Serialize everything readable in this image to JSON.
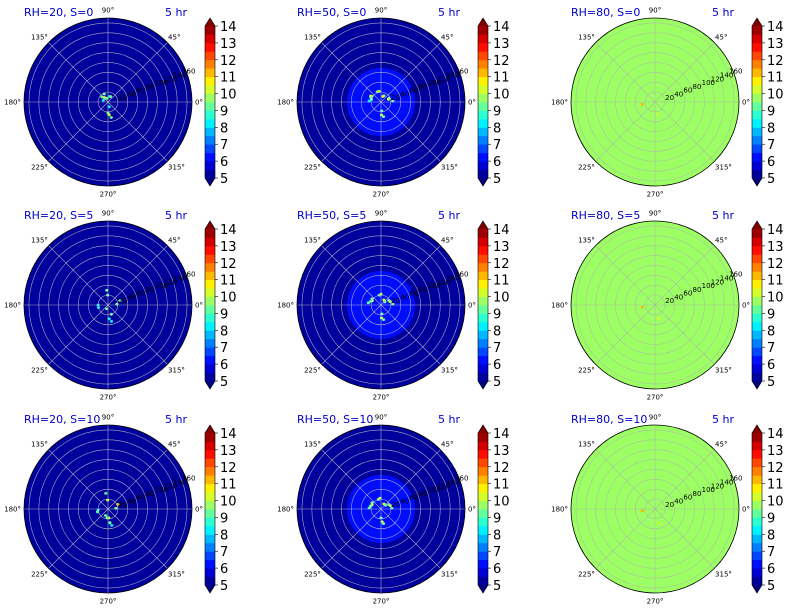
{
  "chart_data": {
    "type": "heatmap",
    "subtype": "polar",
    "grid": true,
    "time_label": "5 hr",
    "angle_labels": [
      "90°",
      "45°",
      "0°",
      "315°",
      "270°",
      "225°",
      "180°",
      "135°"
    ],
    "radial_tick_labels": [
      "20",
      "40",
      "60",
      "80",
      "100",
      "120",
      "140",
      "160"
    ],
    "colorbar_ticks": [
      "5",
      "6",
      "7",
      "8",
      "9",
      "10",
      "11",
      "12",
      "13",
      "14"
    ],
    "colorbar_range": [
      5,
      14
    ],
    "colormap": "jet",
    "panels": [
      {
        "title": "RH=20, S=0",
        "background": 5,
        "center_value": null,
        "spots": [
          [
            104,
            8,
            9
          ],
          [
            112,
            8,
            9
          ],
          [
            72,
            12,
            8
          ],
          [
            64,
            12,
            9
          ],
          [
            130,
            12,
            10
          ],
          [
            115,
            18,
            9
          ],
          [
            140,
            16,
            9
          ],
          [
            160,
            10,
            8
          ],
          [
            284,
            10,
            8
          ],
          [
            270,
            22,
            9
          ],
          [
            275,
            26,
            10
          ],
          [
            282,
            32,
            9
          ]
        ]
      },
      {
        "title": "RH=50, S=0",
        "background": 5,
        "center_value": 6,
        "spots": [
          [
            110,
            22,
            9
          ],
          [
            100,
            22,
            10
          ],
          [
            65,
            14,
            9
          ],
          [
            70,
            12,
            10
          ],
          [
            25,
            18,
            9
          ],
          [
            20,
            16,
            10
          ],
          [
            5,
            24,
            9
          ],
          [
            148,
            22,
            9
          ],
          [
            150,
            24,
            10
          ],
          [
            157,
            22,
            9
          ],
          [
            165,
            20,
            9
          ],
          [
            175,
            24,
            8
          ],
          [
            275,
            18,
            9
          ],
          [
            272,
            26,
            10
          ],
          [
            280,
            30,
            9
          ]
        ]
      },
      {
        "title": "RH=80, S=0",
        "background": 9.5,
        "center_value": 9.9,
        "spots": [
          [
            190,
            26,
            11
          ],
          [
            280,
            26,
            10
          ]
        ]
      },
      {
        "title": "RH=20, S=5",
        "background": 5,
        "center_value": null,
        "spots": [
          [
            95,
            30,
            9
          ],
          [
            92,
            20,
            9
          ],
          [
            20,
            26,
            9
          ],
          [
            5,
            18,
            9
          ],
          [
            180,
            20,
            8
          ],
          [
            195,
            20,
            8
          ],
          [
            250,
            8,
            9
          ],
          [
            290,
            20,
            9
          ],
          [
            275,
            28,
            8
          ],
          [
            282,
            34,
            8
          ]
        ]
      },
      {
        "title": "RH=50, S=5",
        "background": 5,
        "center_value": 6,
        "spots": [
          [
            100,
            20,
            9
          ],
          [
            90,
            22,
            10
          ],
          [
            60,
            12,
            10
          ],
          [
            40,
            10,
            9
          ],
          [
            30,
            18,
            9
          ],
          [
            20,
            20,
            10
          ],
          [
            5,
            24,
            9
          ],
          [
            145,
            22,
            9
          ],
          [
            155,
            20,
            10
          ],
          [
            160,
            22,
            9
          ],
          [
            170,
            26,
            9
          ],
          [
            275,
            18,
            9
          ],
          [
            272,
            26,
            10
          ],
          [
            280,
            30,
            9
          ]
        ]
      },
      {
        "title": "RH=80, S=5",
        "background": 9.5,
        "center_value": 9.9,
        "spots": [
          [
            190,
            26,
            11
          ],
          [
            285,
            28,
            10
          ]
        ]
      },
      {
        "title": "RH=20, S=10",
        "background": 5,
        "center_value": null,
        "spots": [
          [
            98,
            32,
            9
          ],
          [
            92,
            18,
            10
          ],
          [
            25,
            22,
            11
          ],
          [
            5,
            16,
            9
          ],
          [
            185,
            20,
            8
          ],
          [
            195,
            22,
            9
          ],
          [
            250,
            14,
            9
          ],
          [
            275,
            18,
            10
          ],
          [
            278,
            28,
            9
          ],
          [
            283,
            34,
            8
          ],
          [
            265,
            18,
            9
          ]
        ]
      },
      {
        "title": "RH=50, S=10",
        "background": 5,
        "center_value": 6,
        "spots": [
          [
            105,
            20,
            9
          ],
          [
            95,
            22,
            10
          ],
          [
            60,
            12,
            10
          ],
          [
            40,
            12,
            9
          ],
          [
            30,
            18,
            9
          ],
          [
            20,
            20,
            10
          ],
          [
            5,
            22,
            9
          ],
          [
            145,
            22,
            9
          ],
          [
            155,
            20,
            10
          ],
          [
            165,
            22,
            9
          ],
          [
            175,
            24,
            9
          ],
          [
            270,
            18,
            9
          ],
          [
            275,
            26,
            10
          ],
          [
            280,
            30,
            9
          ]
        ]
      },
      {
        "title": "RH=80, S=10",
        "background": 9.5,
        "center_value": 9.9,
        "spots": [
          [
            188,
            26,
            11
          ],
          [
            288,
            30,
            10
          ]
        ]
      }
    ]
  }
}
